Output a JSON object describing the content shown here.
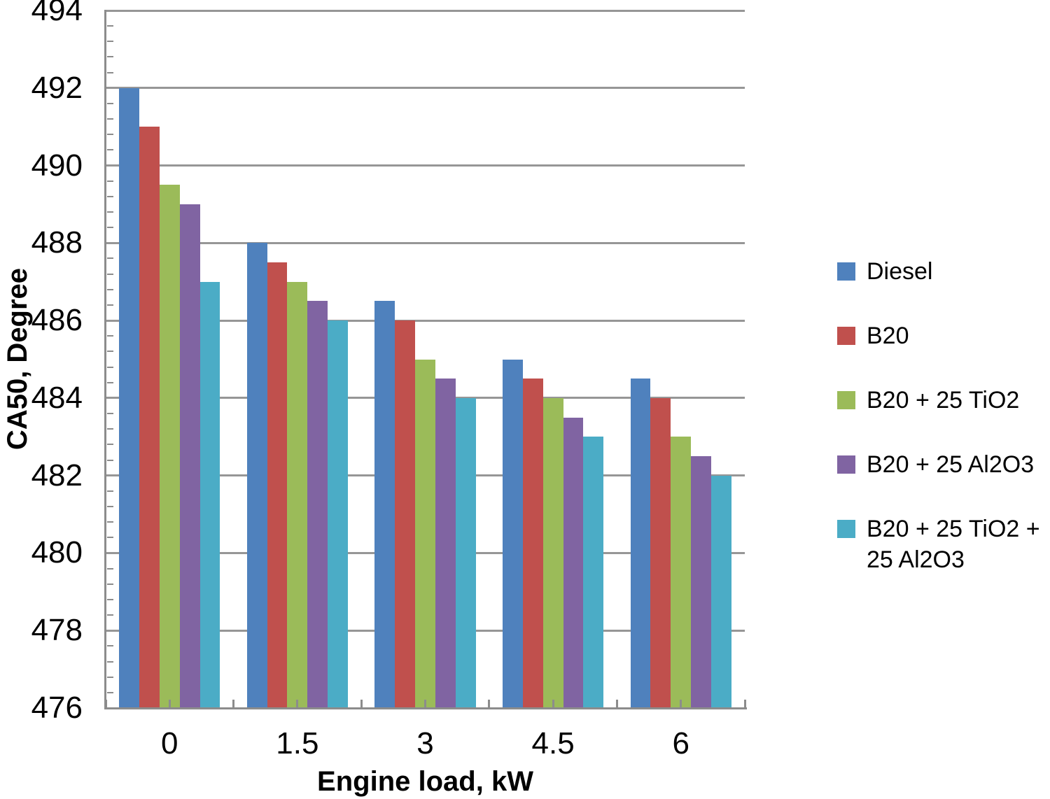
{
  "chart_data": {
    "type": "bar",
    "title": "",
    "xlabel": "Engine load, kW",
    "ylabel": "CA50, Degree",
    "categories": [
      "0",
      "1.5",
      "3",
      "4.5",
      "6"
    ],
    "series": [
      {
        "name": "Diesel",
        "color": "#4F81BD",
        "values": [
          492,
          488,
          486.5,
          485,
          484.5
        ]
      },
      {
        "name": "B20",
        "color": "#C0504D",
        "values": [
          491,
          487.5,
          486,
          484.5,
          484
        ]
      },
      {
        "name": "B20 + 25 TiO2",
        "color": "#9BBB59",
        "values": [
          489.5,
          487,
          485,
          484,
          483
        ]
      },
      {
        "name": "B20 + 25 Al2O3",
        "color": "#8064A2",
        "values": [
          489,
          486.5,
          484.5,
          483.5,
          482.5
        ]
      },
      {
        "name": "B20 + 25 TiO2 + 25 Al2O3",
        "color": "#4BACC6",
        "values": [
          487,
          486,
          484,
          483,
          482
        ]
      }
    ],
    "ylim": [
      476,
      494
    ],
    "y_major_unit": 2,
    "y_minor_unit": 0.4,
    "y_tick_labels": [
      "476",
      "478",
      "480",
      "482",
      "484",
      "486",
      "488",
      "490",
      "492",
      "494"
    ],
    "grid": true,
    "legend_position": "right",
    "styles": {
      "gridline_color": "#969696",
      "axis_color": "#8C8C8C",
      "text_color": "#000000",
      "background": "#FFFFFF"
    }
  }
}
